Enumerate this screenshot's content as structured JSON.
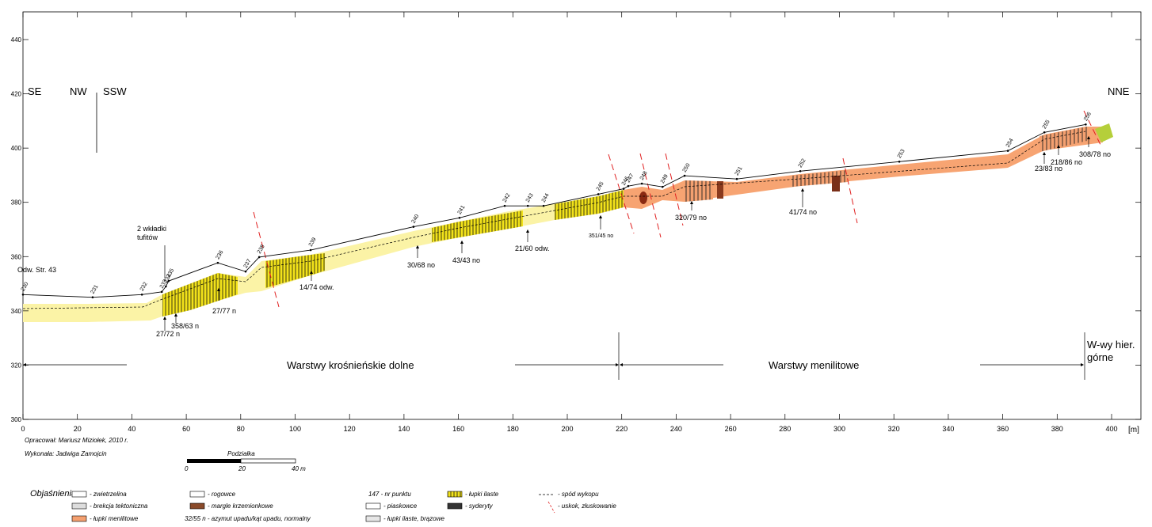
{
  "axes": {
    "xticks": [
      0,
      20,
      40,
      60,
      80,
      100,
      120,
      140,
      160,
      180,
      200,
      220,
      240,
      260,
      280,
      300,
      320,
      340,
      360,
      380,
      400
    ],
    "yticks": [
      300,
      320,
      340,
      360,
      380,
      400,
      420,
      440
    ],
    "x_unit": "[m]"
  },
  "profile": {
    "stations": [
      {
        "label": "230",
        "x": 0,
        "elevation": 346
      },
      {
        "label": "231",
        "x": 25.6,
        "elevation": 345
      },
      {
        "label": "232",
        "x": 43.7,
        "elevation": 346
      },
      {
        "label": "233",
        "x": 51,
        "elevation": 347
      },
      {
        "label": "234",
        "x": 52.5,
        "elevation": 349
      },
      {
        "label": "235",
        "x": 53.5,
        "elevation": 351
      },
      {
        "label": "236",
        "x": 71.6,
        "elevation": 357.7
      },
      {
        "label": "237",
        "x": 81.8,
        "elevation": 354.5
      },
      {
        "label": "238",
        "x": 86.8,
        "elevation": 359.8
      },
      {
        "label": "239",
        "x": 105.7,
        "elevation": 362.4
      },
      {
        "label": "240",
        "x": 143.5,
        "elevation": 371
      },
      {
        "label": "241",
        "x": 160.4,
        "elevation": 374.3
      },
      {
        "label": "242",
        "x": 177,
        "elevation": 378.7
      },
      {
        "label": "243",
        "x": 185.5,
        "elevation": 378.7
      },
      {
        "label": "244",
        "x": 191.3,
        "elevation": 378.7
      },
      {
        "label": "245",
        "x": 211.4,
        "elevation": 383
      },
      {
        "label": "246",
        "x": 220.7,
        "elevation": 385
      },
      {
        "label": "247",
        "x": 222.4,
        "elevation": 386
      },
      {
        "label": "248",
        "x": 227.4,
        "elevation": 386.9
      },
      {
        "label": "249",
        "x": 235,
        "elevation": 385.7
      },
      {
        "label": "250",
        "x": 243.1,
        "elevation": 389.8
      },
      {
        "label": "251",
        "x": 262.3,
        "elevation": 388.6
      },
      {
        "label": "252",
        "x": 285.6,
        "elevation": 391.5
      },
      {
        "label": "253",
        "x": 322,
        "elevation": 395
      },
      {
        "label": "254",
        "x": 361.9,
        "elevation": 399
      },
      {
        "label": "255",
        "x": 375.3,
        "elevation": 405.8
      },
      {
        "label": "256",
        "x": 390.5,
        "elevation": 408.7
      }
    ]
  },
  "directions": [
    "SE",
    "NW",
    "SSW",
    "NNE"
  ],
  "annotations": {
    "odw": "Odw. Str. 43",
    "tufity": [
      "2 wkładki",
      "tufitów"
    ]
  },
  "measurements": [
    "27/72 n",
    "358/63 n",
    "27/77 n",
    "14/74 odw.",
    "30/68 no",
    "43/43 no",
    "21/60 odw.",
    "351/45 no",
    "320/79 no",
    "41/74 no",
    "23/83 no",
    "218/86 no",
    "308/78 no"
  ],
  "units": [
    "Warstwy krośnieńskie dolne",
    "Warstwy menilitowe",
    "W-wy hier.",
    "górne"
  ],
  "credits": [
    "Opracował: Mariusz Miziołek, 2010 r.",
    "Wykonała: Jadwiga Zamojcin"
  ],
  "scale": {
    "title": "Podziałka",
    "labels": [
      "0",
      "20",
      "40 m"
    ]
  },
  "legend": {
    "title": "Objaśnienia:",
    "items": [
      "- zwietrzelina",
      "- brekcja tektoniczna",
      "- łupki menilitowe",
      "- rogowce",
      "- margle krzemionkowe",
      "32/55 n - azymut upadu/kąt upadu, normalny",
      "147  - nr punktu",
      "- piaskowce",
      "- łupki ilaste, brązowe",
      "- łupki ilaste",
      "- syderyty",
      "- spód wykopu",
      "- uskok, złuskowanie"
    ]
  }
}
